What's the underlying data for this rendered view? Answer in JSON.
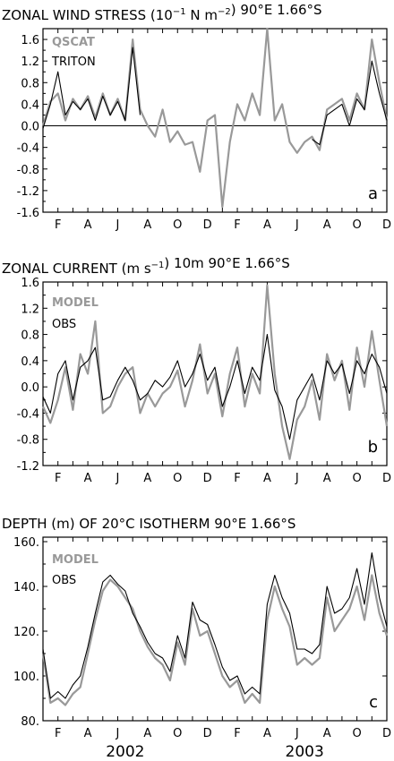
{
  "chart_data": [
    {
      "type": "line",
      "title": "ZONAL WIND STRESS (10",
      "title_exp": "−1",
      "title_mid": " N m",
      "title_exp2": "−2",
      "title_end": ") 90°E 1.66°S",
      "panel_letter": "a",
      "ylim": [
        -1.6,
        1.8
      ],
      "yticks": [
        -1.6,
        -1.2,
        -0.8,
        -0.4,
        0.0,
        0.4,
        0.8,
        1.2,
        1.6
      ],
      "ytick_labels": [
        "-1.6",
        "-1.2",
        "-0.8",
        "-0.4",
        "0.0",
        "0.4",
        "0.8",
        "1.2",
        "1.6"
      ],
      "zero_line": true,
      "xlim": [
        0,
        23
      ],
      "series": [
        {
          "name": "QSCAT",
          "color": "#999999",
          "x": [
            0,
            0.5,
            1,
            1.5,
            2,
            2.5,
            3,
            3.5,
            4,
            4.5,
            5,
            5.5,
            6,
            6.5,
            7,
            7.5,
            8,
            8.5,
            9,
            9.5,
            10,
            10.5,
            11,
            11.5,
            12,
            12.5,
            13,
            13.5,
            14,
            14.5,
            15,
            15.5,
            16,
            16.5,
            17,
            17.5,
            18,
            18.5,
            19,
            19.5,
            20,
            20.5,
            21,
            21.5,
            22,
            22.5,
            23
          ],
          "values": [
            0.0,
            0.45,
            0.6,
            0.1,
            0.5,
            0.3,
            0.55,
            0.15,
            0.6,
            0.2,
            0.5,
            0.1,
            1.6,
            0.3,
            0.0,
            -0.2,
            0.3,
            -0.3,
            -0.1,
            -0.35,
            -0.3,
            -0.85,
            0.1,
            0.2,
            -1.5,
            -0.3,
            0.4,
            0.1,
            0.6,
            0.2,
            1.8,
            0.1,
            0.4,
            -0.3,
            -0.5,
            -0.3,
            -0.2,
            -0.45,
            0.3,
            0.4,
            0.5,
            0.1,
            0.6,
            0.3,
            1.6,
            0.8,
            0.1
          ]
        },
        {
          "name": "TRITON",
          "color": "#000000",
          "x": [
            0,
            0.5,
            1,
            1.5,
            2,
            2.5,
            3,
            3.5,
            4,
            4.5,
            5,
            5.5,
            6,
            6.5,
            18,
            18.5,
            19,
            19.5,
            20,
            20.5,
            21,
            21.5,
            22,
            22.5,
            23
          ],
          "values": [
            -0.05,
            0.4,
            1.0,
            0.2,
            0.45,
            0.3,
            0.5,
            0.1,
            0.55,
            0.2,
            0.45,
            0.1,
            1.45,
            0.2,
            -0.25,
            -0.35,
            0.2,
            0.3,
            0.4,
            0.0,
            0.5,
            0.3,
            1.2,
            0.6,
            0.1
          ]
        }
      ]
    },
    {
      "type": "line",
      "title": "ZONAL CURRENT (m s",
      "title_exp": "−1",
      "title_end": ") 10m 90°E 1.66°S",
      "panel_letter": "b",
      "ylim": [
        -1.2,
        1.6
      ],
      "yticks": [
        -1.2,
        -0.8,
        -0.4,
        0.0,
        0.4,
        0.8,
        1.2,
        1.6
      ],
      "ytick_labels": [
        "-1.2",
        "-0.8",
        "-0.4",
        "0.0",
        "0.4",
        "0.8",
        "1.2",
        "1.6"
      ],
      "zero_line": false,
      "xlim": [
        0,
        23
      ],
      "series": [
        {
          "name": "MODEL",
          "color": "#999999",
          "x": [
            0,
            0.5,
            1,
            1.5,
            2,
            2.5,
            3,
            3.5,
            4,
            4.5,
            5,
            5.5,
            6,
            6.5,
            7,
            7.5,
            8,
            8.5,
            9,
            9.5,
            10,
            10.5,
            11,
            11.5,
            12,
            12.5,
            13,
            13.5,
            14,
            14.5,
            15,
            15.5,
            16,
            16.5,
            17,
            17.5,
            18,
            18.5,
            19,
            19.5,
            20,
            20.5,
            21,
            21.5,
            22,
            22.5,
            23
          ],
          "values": [
            -0.3,
            -0.55,
            -0.2,
            0.3,
            -0.35,
            0.5,
            0.2,
            1.0,
            -0.4,
            -0.3,
            0.0,
            0.2,
            0.3,
            -0.4,
            -0.1,
            -0.3,
            -0.1,
            0.0,
            0.25,
            -0.3,
            0.1,
            0.65,
            -0.1,
            0.2,
            -0.45,
            0.2,
            0.6,
            -0.3,
            0.2,
            -0.1,
            1.55,
            0.2,
            -0.6,
            -1.1,
            -0.5,
            -0.3,
            0.1,
            -0.5,
            0.5,
            0.1,
            0.4,
            -0.35,
            0.6,
            0.0,
            0.85,
            0.1,
            -0.6
          ]
        },
        {
          "name": "OBS",
          "color": "#000000",
          "x": [
            0,
            0.5,
            1,
            1.5,
            2,
            2.5,
            3,
            3.5,
            4,
            4.5,
            5,
            5.5,
            6,
            6.5,
            7,
            7.5,
            8,
            8.5,
            9,
            9.5,
            10,
            10.5,
            11,
            11.5,
            12,
            12.5,
            13,
            13.5,
            14,
            14.5,
            15,
            15.5,
            16,
            16.5,
            17,
            17.5,
            18,
            18.5,
            19,
            19.5,
            20,
            20.5,
            21,
            21.5,
            22,
            22.5,
            23
          ],
          "values": [
            -0.15,
            -0.4,
            0.2,
            0.4,
            -0.2,
            0.3,
            0.4,
            0.6,
            -0.2,
            -0.15,
            0.1,
            0.3,
            0.1,
            -0.2,
            -0.1,
            0.1,
            0.0,
            0.15,
            0.4,
            0.0,
            0.2,
            0.5,
            0.1,
            0.3,
            -0.3,
            0.0,
            0.4,
            -0.1,
            0.3,
            0.1,
            0.8,
            -0.05,
            -0.3,
            -0.8,
            -0.2,
            0.0,
            0.2,
            -0.2,
            0.4,
            0.2,
            0.35,
            -0.1,
            0.4,
            0.2,
            0.5,
            0.3,
            -0.1
          ]
        }
      ]
    },
    {
      "type": "line",
      "title": "DEPTH (m) OF 20°C ISOTHERM 90°E 1.66°S",
      "panel_letter": "c",
      "ylim": [
        80,
        162
      ],
      "yticks": [
        80,
        100,
        120,
        140,
        160
      ],
      "ytick_labels": [
        "80.",
        "100.",
        "120.",
        "140.",
        "160."
      ],
      "zero_line": false,
      "xlim": [
        0,
        23
      ],
      "series": [
        {
          "name": "MODEL",
          "color": "#999999",
          "x": [
            0,
            0.5,
            1,
            1.5,
            2,
            2.5,
            3,
            3.5,
            4,
            4.5,
            5,
            5.5,
            6,
            6.5,
            7,
            7.5,
            8,
            8.5,
            9,
            9.5,
            10,
            10.5,
            11,
            11.5,
            12,
            12.5,
            13,
            13.5,
            14,
            14.5,
            15,
            15.5,
            16,
            16.5,
            17,
            17.5,
            18,
            18.5,
            19,
            19.5,
            20,
            20.5,
            21,
            21.5,
            22,
            22.5,
            23
          ],
          "values": [
            110,
            88,
            90,
            87,
            92,
            95,
            110,
            125,
            138,
            143,
            140,
            135,
            130,
            120,
            113,
            108,
            105,
            98,
            115,
            105,
            130,
            118,
            120,
            110,
            100,
            95,
            98,
            88,
            92,
            88,
            125,
            140,
            130,
            122,
            105,
            108,
            105,
            108,
            135,
            120,
            125,
            130,
            140,
            125,
            145,
            128,
            118
          ]
        },
        {
          "name": "OBS",
          "color": "#000000",
          "x": [
            0,
            0.5,
            1,
            1.5,
            2,
            2.5,
            3,
            3.5,
            4,
            4.5,
            5,
            5.5,
            6,
            6.5,
            7,
            7.5,
            8,
            8.5,
            9,
            9.5,
            10,
            10.5,
            11,
            11.5,
            12,
            12.5,
            13,
            13.5,
            14,
            14.5,
            15,
            15.5,
            16,
            16.5,
            17,
            17.5,
            18,
            18.5,
            19,
            19.5,
            20,
            20.5,
            21,
            21.5,
            22,
            22.5,
            23
          ],
          "values": [
            112,
            90,
            93,
            90,
            96,
            100,
            113,
            128,
            142,
            145,
            141,
            138,
            128,
            122,
            115,
            110,
            108,
            102,
            118,
            108,
            133,
            125,
            123,
            114,
            104,
            98,
            100,
            92,
            95,
            92,
            132,
            145,
            135,
            128,
            112,
            112,
            110,
            114,
            140,
            128,
            130,
            135,
            148,
            132,
            155,
            135,
            122
          ]
        }
      ]
    }
  ],
  "x_axis": {
    "month_labels": [
      "F",
      "A",
      "J",
      "A",
      "O",
      "D",
      "F",
      "A",
      "J",
      "A",
      "O",
      "D"
    ],
    "month_x": [
      1,
      3,
      5,
      7,
      9,
      11,
      13,
      15,
      17,
      19,
      21,
      23
    ],
    "year_labels": [
      "2002",
      "2003"
    ],
    "year_x": [
      5.5,
      17.5
    ]
  }
}
